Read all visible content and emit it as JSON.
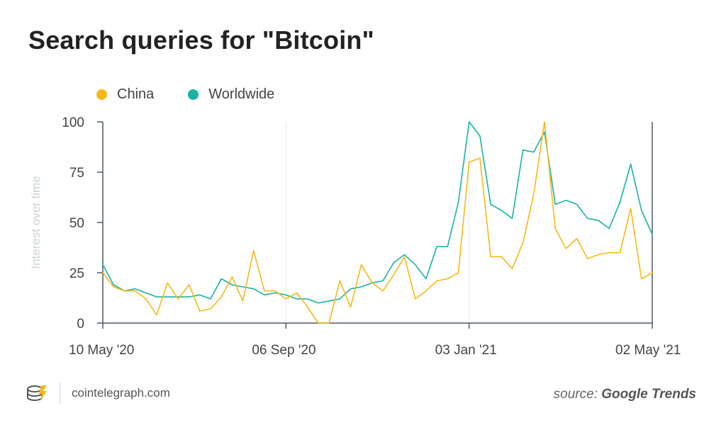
{
  "title": "Search queries for \"Bitcoin\"",
  "footer": {
    "brand": "cointelegraph.com",
    "source_prefix": "source:",
    "source_name": "Google Trends"
  },
  "chart_data": {
    "type": "line",
    "title": "Search queries for \"Bitcoin\"",
    "ylabel": "Interest over time",
    "xlabel": "",
    "ylim": [
      0,
      100
    ],
    "yticks": [
      0,
      25,
      50,
      75,
      100
    ],
    "xtick_labels": [
      "10 May '20",
      "06 Sep '20",
      "03 Jan '21",
      "02 May  '21"
    ],
    "xtick_index": [
      0,
      17,
      34,
      51
    ],
    "grid": "vertical",
    "legend": "top-left",
    "series": [
      {
        "name": "China",
        "color": "#f5b915",
        "values": [
          25,
          18,
          16,
          16,
          12,
          4,
          20,
          12,
          19,
          6,
          7,
          13,
          23,
          11,
          36,
          16,
          16,
          12,
          15,
          8,
          0,
          0,
          21,
          8,
          29,
          20,
          16,
          24,
          33,
          12,
          16,
          21,
          22,
          25,
          80,
          82,
          33,
          33,
          27,
          40,
          64,
          100,
          47,
          37,
          42,
          32,
          34,
          35,
          35,
          57,
          22,
          25
        ]
      },
      {
        "name": "Worldwide",
        "color": "#18b3a5",
        "values": [
          29,
          19,
          16,
          17,
          15,
          13,
          13,
          13,
          13,
          14,
          12,
          22,
          19,
          18,
          17,
          14,
          15,
          14,
          12,
          12,
          10,
          11,
          12,
          17,
          18,
          20,
          21,
          30,
          34,
          29,
          22,
          38,
          38,
          60,
          100,
          93,
          59,
          56,
          52,
          86,
          85,
          95,
          59,
          61,
          59,
          52,
          51,
          47,
          60,
          79,
          56,
          44
        ]
      }
    ]
  }
}
